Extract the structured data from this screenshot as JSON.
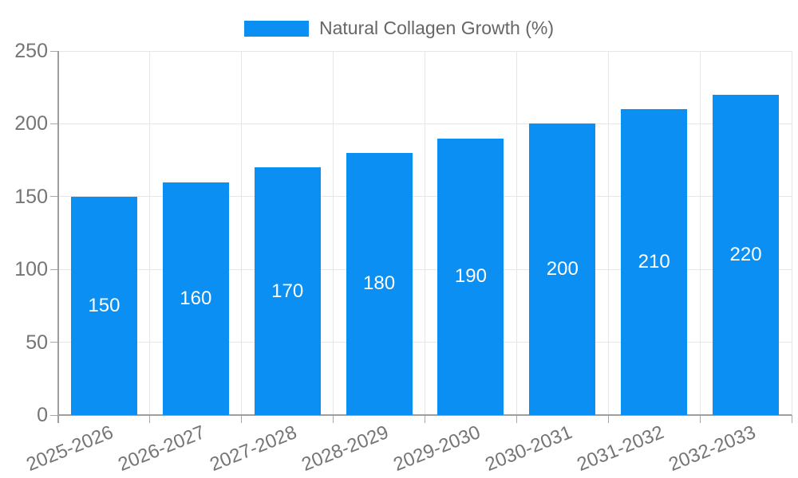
{
  "legend": {
    "label": "Natural Collagen Growth (%)"
  },
  "chart_data": {
    "type": "bar",
    "title": "Natural Collagen Growth (%)",
    "categories": [
      "2025-2026",
      "2026-2027",
      "2027-2028",
      "2028-2029",
      "2029-2030",
      "2030-2031",
      "2031-2032",
      "2032-2033"
    ],
    "values": [
      150,
      160,
      170,
      180,
      190,
      200,
      210,
      220
    ],
    "xlabel": "",
    "ylabel": "",
    "ylim": [
      0,
      250
    ],
    "yticks": [
      0,
      50,
      100,
      150,
      200,
      250
    ],
    "grid": true,
    "legend_position": "top",
    "colors": {
      "bar": "#0b8ff2",
      "value_label": "#ffffff",
      "gridline": "#e6e6e6",
      "axis": "#9e9e9e",
      "tick_mark": "#a8a8a8",
      "tick_label": "#757575",
      "legend_text": "#666666",
      "background": "#ffffff"
    }
  }
}
